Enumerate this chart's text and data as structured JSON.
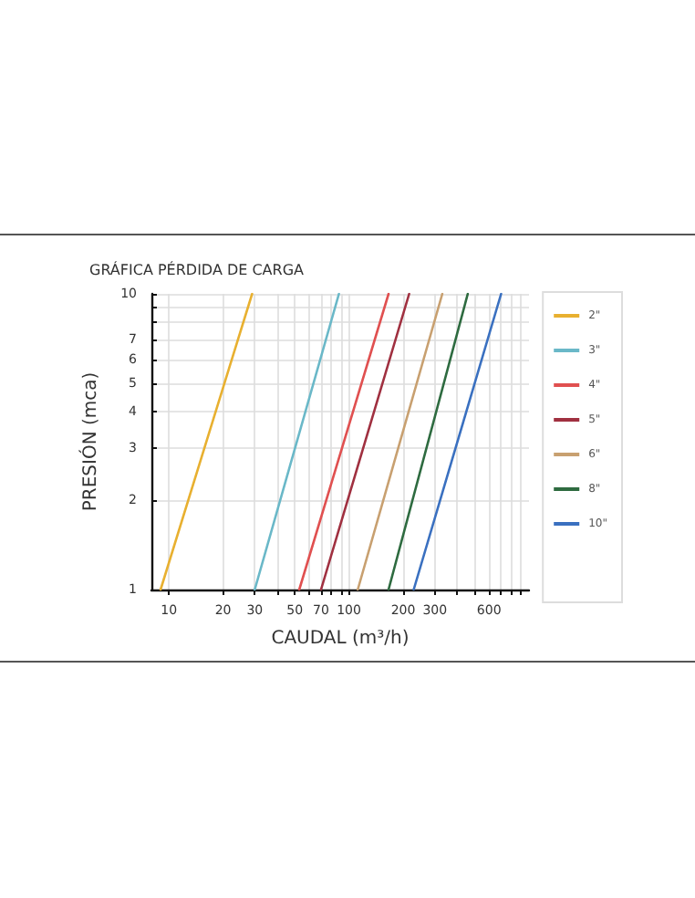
{
  "chart_data": {
    "type": "line",
    "title": "GRÁFICA PÉRDIDA DE CARGA",
    "xlabel": "CAUDAL (m³/h)",
    "ylabel": "PRESIÓN (mca)",
    "log": "xy",
    "grid": true,
    "legend": "right",
    "marker": "none",
    "line_style": "solid",
    "xlim": [
      8,
      1000
    ],
    "ylim": [
      1,
      10
    ],
    "xticks": [
      10,
      20,
      30,
      {
        "value": 40,
        "label": null
      },
      50,
      {
        "value": 60,
        "label": null
      },
      70,
      {
        "value": 80,
        "label": null
      },
      {
        "value": 90,
        "label": null
      },
      100,
      200,
      300,
      {
        "value": 400,
        "label": null
      },
      {
        "value": 500,
        "label": null
      },
      600,
      {
        "value": 700,
        "label": null
      },
      {
        "value": 800,
        "label": null
      },
      {
        "value": 900,
        "label": null
      }
    ],
    "yticks": [
      1,
      2,
      3,
      4,
      5,
      6,
      7,
      {
        "value": 8,
        "label": null
      },
      {
        "value": 9,
        "label": null
      },
      10
    ],
    "series": [
      {
        "name": "2\"",
        "color": "#e8b030",
        "x": [
          9,
          29
        ],
        "values": [
          1,
          10
        ]
      },
      {
        "name": "3\"",
        "color": "#6ab8c8",
        "x": [
          30,
          88
        ],
        "values": [
          1,
          10
        ]
      },
      {
        "name": "4\"",
        "color": "#e05050",
        "x": [
          53,
          166
        ],
        "values": [
          1,
          10
        ]
      },
      {
        "name": "5\"",
        "color": "#a03040",
        "x": [
          70,
          216
        ],
        "values": [
          1,
          10
        ]
      },
      {
        "name": "6\"",
        "color": "#c8a070",
        "x": [
          112,
          330
        ],
        "values": [
          1,
          10
        ]
      },
      {
        "name": "8\"",
        "color": "#2e6b40",
        "x": [
          166,
          457
        ],
        "values": [
          1,
          10
        ]
      },
      {
        "name": "10\"",
        "color": "#3a70c0",
        "x": [
          229,
          700
        ],
        "values": [
          1,
          10
        ]
      }
    ]
  }
}
